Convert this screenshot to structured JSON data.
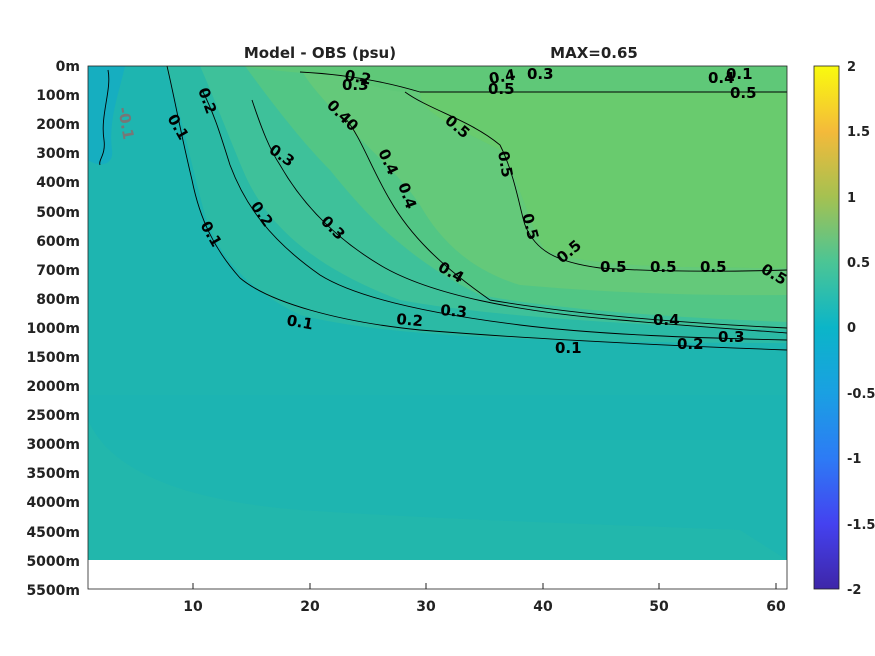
{
  "chart_data": {
    "type": "heatmap",
    "title": "Model - OBS (psu)",
    "subtitle": "MAX=0.65",
    "xlabel": "",
    "ylabel": "",
    "xlim": [
      1,
      61
    ],
    "x_ticks": [
      "10",
      "20",
      "30",
      "40",
      "50",
      "60"
    ],
    "y_ticks": [
      "0m",
      "100m",
      "200m",
      "300m",
      "400m",
      "500m",
      "600m",
      "700m",
      "800m",
      "1000m",
      "1500m",
      "2000m",
      "2500m",
      "3000m",
      "3500m",
      "4000m",
      "4500m",
      "5000m",
      "5500m"
    ],
    "colorbar": {
      "range": [
        -2,
        2
      ],
      "ticks": [
        "2",
        "1.5",
        "1",
        "0.5",
        "0",
        "-0.5",
        "-1",
        "-1.5",
        "-2"
      ],
      "colormap": "parula"
    },
    "fill_levels": [
      {
        "level": "0.1",
        "color": "#1eb5b0"
      },
      {
        "level": "0.2",
        "color": "#2bbaa5"
      },
      {
        "level": "0.3",
        "color": "#3ec19a"
      },
      {
        "level": "0.4",
        "color": "#52c685"
      },
      {
        "level": "0.5",
        "color": "#69cb6e"
      },
      {
        "level": "-0.1",
        "color": "#16aec0"
      }
    ],
    "contours": [
      {
        "level": "0.1",
        "x_depth_path": [
          [
            8,
            "0m"
          ],
          [
            10,
            "200m"
          ],
          [
            13,
            "600m"
          ],
          [
            20,
            "1000m"
          ],
          [
            40,
            "1500m"
          ],
          [
            61,
            "1500m"
          ]
        ]
      },
      {
        "level": "0.2",
        "x_depth_path": [
          [
            11,
            "100m"
          ],
          [
            15,
            "300m"
          ],
          [
            20,
            "600m"
          ],
          [
            30,
            "900m"
          ],
          [
            50,
            "1300m"
          ],
          [
            61,
            "1400m"
          ]
        ]
      },
      {
        "level": "0.3",
        "x_depth_path": [
          [
            15,
            "200m"
          ],
          [
            22,
            "400m"
          ],
          [
            30,
            "700m"
          ],
          [
            40,
            "1000m"
          ],
          [
            61,
            "1300m"
          ]
        ]
      },
      {
        "level": "0.4",
        "x_depth_path": [
          [
            23,
            "200m"
          ],
          [
            28,
            "400m"
          ],
          [
            35,
            "700m"
          ],
          [
            50,
            "1000m"
          ],
          [
            61,
            "1100m"
          ]
        ]
      },
      {
        "level": "0.5",
        "x_depth_path": [
          [
            30,
            "100m"
          ],
          [
            37,
            "200m"
          ],
          [
            38,
            "600m"
          ],
          [
            44,
            "700m"
          ],
          [
            61,
            "700m"
          ]
        ]
      },
      {
        "level": "-0.1",
        "x_depth_path": [
          [
            3,
            "0m"
          ],
          [
            2,
            "200m"
          ],
          [
            3,
            "300m"
          ]
        ]
      }
    ],
    "contour_labels": [
      {
        "text": "0.1",
        "x": 6,
        "depth": "1000m"
      },
      {
        "text": "0.2",
        "x": 28,
        "depth": "1000m"
      },
      {
        "text": "0.3",
        "x": 32,
        "depth": "900m"
      },
      {
        "text": "0.4",
        "x": 52,
        "depth": "1000m"
      },
      {
        "text": "0.3",
        "x": 59,
        "depth": "1000m"
      },
      {
        "text": "0.2",
        "x": 55,
        "depth": "1000m"
      },
      {
        "text": "0.1",
        "x": 44,
        "depth": "1000m"
      },
      {
        "text": "0.1",
        "x": 10,
        "depth": "550m"
      },
      {
        "text": "0.2",
        "x": 16,
        "depth": "500m"
      },
      {
        "text": "0.3",
        "x": 21,
        "depth": "550m"
      },
      {
        "text": "0.4",
        "x": 31,
        "depth": "700m"
      },
      {
        "text": "0.3",
        "x": 18,
        "depth": "300m"
      },
      {
        "text": "0.1",
        "x": 9,
        "depth": "200m"
      },
      {
        "text": "0.2",
        "x": 11,
        "depth": "100m"
      },
      {
        "text": "0.40",
        "x": 22,
        "depth": "200m"
      },
      {
        "text": "0.4",
        "x": 25,
        "depth": "400m"
      },
      {
        "text": "0.4",
        "x": 28,
        "depth": "450m"
      },
      {
        "text": "0.5",
        "x": 33,
        "depth": "200m"
      },
      {
        "text": "0.5",
        "x": 38,
        "depth": "300m"
      },
      {
        "text": "0.5",
        "x": 39,
        "depth": "600m"
      },
      {
        "text": "0.2",
        "x": 24,
        "depth": "0m"
      },
      {
        "text": "0.3",
        "x": 24,
        "depth": "100m"
      },
      {
        "text": "0.4",
        "x": 36,
        "depth": "0m"
      },
      {
        "text": "0.3",
        "x": 40,
        "depth": "0m"
      },
      {
        "text": "0.5",
        "x": 36,
        "depth": "100m"
      },
      {
        "text": "0.1",
        "x": 57,
        "depth": "0m"
      },
      {
        "text": "0.4",
        "x": 57,
        "depth": "100m"
      },
      {
        "text": "0.5",
        "x": 58,
        "depth": "100m"
      },
      {
        "text": "-0.1",
        "x": 4,
        "depth": "200m"
      },
      {
        "text": "0.5",
        "x": 42,
        "depth": "600m"
      },
      {
        "text": "0.5",
        "x": 45,
        "depth": "700m"
      },
      {
        "text": "0.5",
        "x": 50,
        "depth": "700m"
      },
      {
        "text": "0.5",
        "x": 55,
        "depth": "700m"
      },
      {
        "text": "0.5",
        "x": 60,
        "depth": "700m"
      }
    ]
  }
}
